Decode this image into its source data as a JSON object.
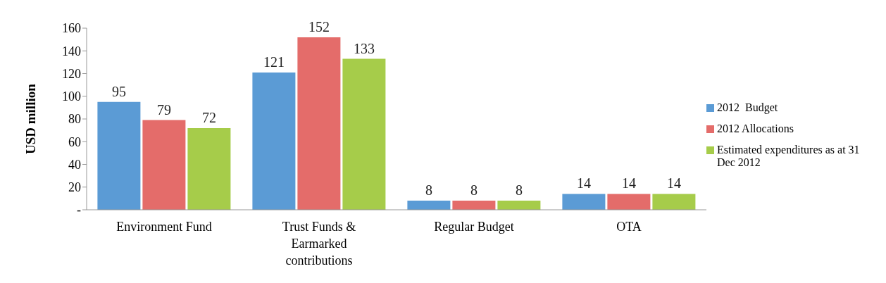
{
  "chart_data": {
    "type": "bar",
    "ylabel": "USD million",
    "categories": [
      "Environment Fund",
      "Trust Funds & Earmarked contributions",
      "Regular Budget",
      "OTA"
    ],
    "series": [
      {
        "name": "2012  Budget",
        "color": "#5b9bd5",
        "values": [
          95,
          121,
          8,
          14
        ]
      },
      {
        "name": "2012 Allocations",
        "color": "#e46c6a",
        "values": [
          79,
          152,
          8,
          14
        ]
      },
      {
        "name": "Estimated expenditures as at 31 Dec 2012",
        "color": "#a6cc4a",
        "values": [
          72,
          133,
          8,
          14
        ]
      }
    ],
    "ylim": [
      0,
      160
    ],
    "yticks": [
      {
        "value": 0,
        "label": "-"
      },
      20,
      40,
      60,
      80,
      100,
      120,
      140,
      160
    ],
    "data_labels": true,
    "legend": "right",
    "grid": false
  }
}
